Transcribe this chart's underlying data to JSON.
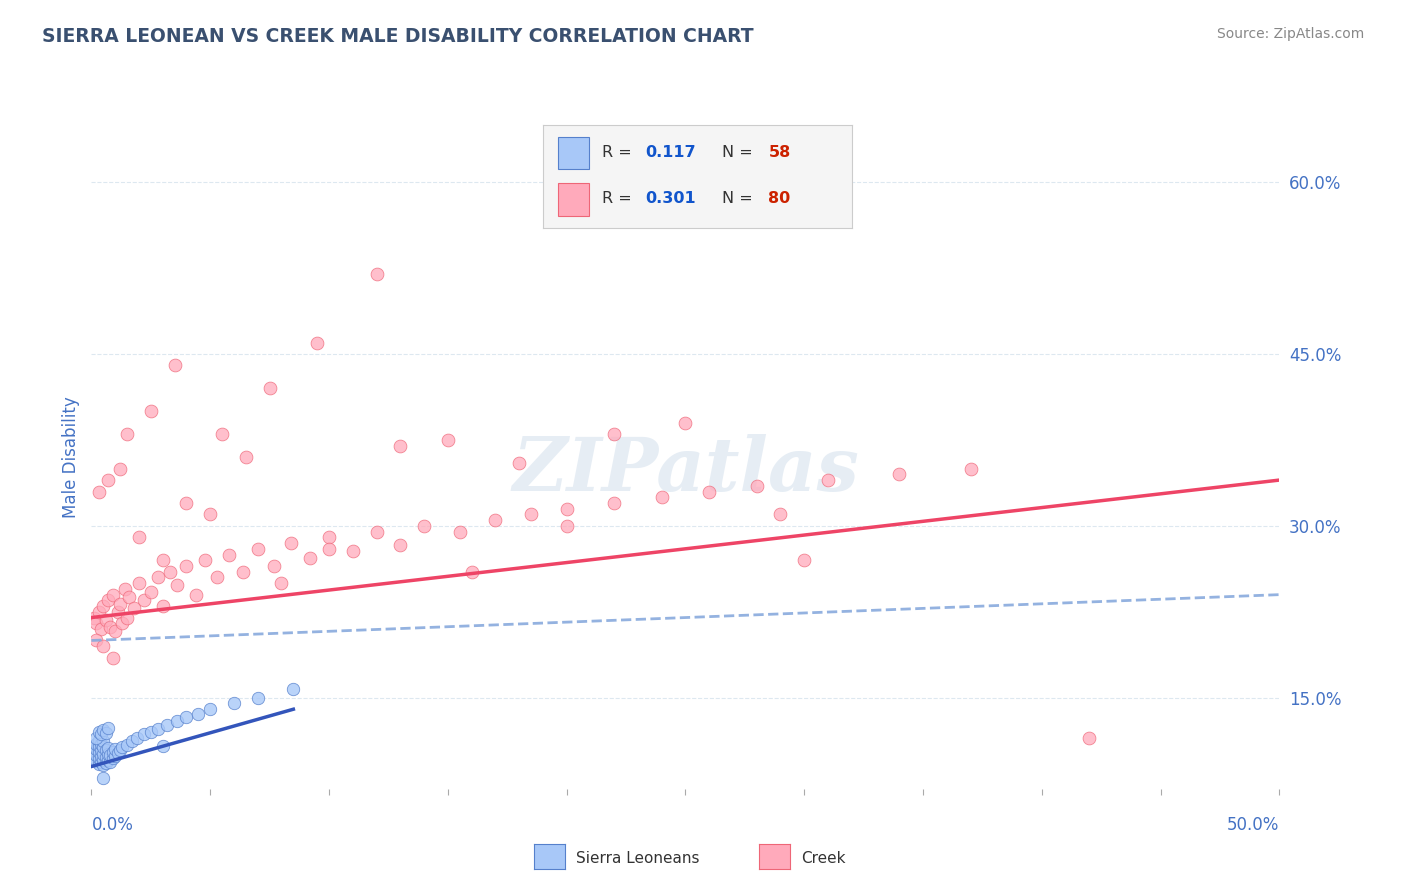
{
  "title": "SIERRA LEONEAN VS CREEK MALE DISABILITY CORRELATION CHART",
  "source_text": "Source: ZipAtlas.com",
  "ylabel": "Male Disability",
  "ylabel_right_ticks": [
    "15.0%",
    "30.0%",
    "45.0%",
    "60.0%"
  ],
  "ylabel_right_vals": [
    0.15,
    0.3,
    0.45,
    0.6
  ],
  "xmin": 0.0,
  "xmax": 0.5,
  "ymin": 0.07,
  "ymax": 0.65,
  "watermark": "ZIPatlas",
  "watermark_color": "#c8d8e8",
  "title_color": "#3a5070",
  "source_color": "#888888",
  "axis_label_color": "#4472c4",
  "background_color": "#ffffff",
  "plot_bg_color": "#ffffff",
  "grid_color": "#dde8f0",
  "sierra_fill": "#a8c8f8",
  "sierra_edge": "#5580cc",
  "creek_fill": "#ffaabb",
  "creek_edge": "#ee6677",
  "trend_sierra_color": "#3355bb",
  "trend_creek_color": "#ee4466",
  "trend_dashed_color": "#88aadd",
  "legend_box_color": "#f5f5f5",
  "legend_border_color": "#cccccc",
  "legend_text_color": "#333333",
  "legend_R_color": "#1155cc",
  "legend_N_color": "#cc2200",
  "bottom_legend_text_color": "#333333",
  "sierra_x": [
    0.001,
    0.001,
    0.001,
    0.002,
    0.002,
    0.002,
    0.002,
    0.003,
    0.003,
    0.003,
    0.003,
    0.003,
    0.004,
    0.004,
    0.004,
    0.004,
    0.005,
    0.005,
    0.005,
    0.005,
    0.005,
    0.006,
    0.006,
    0.006,
    0.007,
    0.007,
    0.007,
    0.008,
    0.008,
    0.009,
    0.009,
    0.01,
    0.01,
    0.011,
    0.012,
    0.013,
    0.015,
    0.017,
    0.019,
    0.022,
    0.025,
    0.028,
    0.032,
    0.036,
    0.04,
    0.045,
    0.05,
    0.06,
    0.07,
    0.085,
    0.002,
    0.003,
    0.004,
    0.005,
    0.006,
    0.007,
    0.03,
    0.005
  ],
  "sierra_y": [
    0.097,
    0.102,
    0.108,
    0.095,
    0.1,
    0.105,
    0.11,
    0.092,
    0.097,
    0.103,
    0.108,
    0.113,
    0.094,
    0.099,
    0.104,
    0.11,
    0.091,
    0.096,
    0.101,
    0.107,
    0.112,
    0.093,
    0.098,
    0.104,
    0.096,
    0.101,
    0.106,
    0.094,
    0.1,
    0.097,
    0.103,
    0.099,
    0.105,
    0.102,
    0.104,
    0.107,
    0.109,
    0.112,
    0.115,
    0.118,
    0.12,
    0.123,
    0.126,
    0.13,
    0.133,
    0.136,
    0.14,
    0.145,
    0.15,
    0.158,
    0.115,
    0.12,
    0.118,
    0.122,
    0.119,
    0.124,
    0.108,
    0.08
  ],
  "creek_x": [
    0.001,
    0.002,
    0.003,
    0.004,
    0.005,
    0.006,
    0.007,
    0.008,
    0.009,
    0.01,
    0.011,
    0.012,
    0.013,
    0.014,
    0.015,
    0.016,
    0.018,
    0.02,
    0.022,
    0.025,
    0.028,
    0.03,
    0.033,
    0.036,
    0.04,
    0.044,
    0.048,
    0.053,
    0.058,
    0.064,
    0.07,
    0.077,
    0.084,
    0.092,
    0.1,
    0.11,
    0.12,
    0.13,
    0.14,
    0.155,
    0.17,
    0.185,
    0.2,
    0.22,
    0.24,
    0.26,
    0.28,
    0.31,
    0.34,
    0.37,
    0.002,
    0.003,
    0.005,
    0.007,
    0.009,
    0.012,
    0.015,
    0.02,
    0.025,
    0.03,
    0.04,
    0.05,
    0.065,
    0.08,
    0.1,
    0.13,
    0.16,
    0.2,
    0.25,
    0.3,
    0.035,
    0.055,
    0.075,
    0.095,
    0.12,
    0.15,
    0.18,
    0.22,
    0.42,
    0.29
  ],
  "creek_y": [
    0.22,
    0.215,
    0.225,
    0.21,
    0.23,
    0.218,
    0.235,
    0.212,
    0.24,
    0.208,
    0.225,
    0.232,
    0.215,
    0.245,
    0.22,
    0.238,
    0.228,
    0.25,
    0.235,
    0.242,
    0.255,
    0.23,
    0.26,
    0.248,
    0.265,
    0.24,
    0.27,
    0.255,
    0.275,
    0.26,
    0.28,
    0.265,
    0.285,
    0.272,
    0.29,
    0.278,
    0.295,
    0.283,
    0.3,
    0.295,
    0.305,
    0.31,
    0.315,
    0.32,
    0.325,
    0.33,
    0.335,
    0.34,
    0.345,
    0.35,
    0.2,
    0.33,
    0.195,
    0.34,
    0.185,
    0.35,
    0.38,
    0.29,
    0.4,
    0.27,
    0.32,
    0.31,
    0.36,
    0.25,
    0.28,
    0.37,
    0.26,
    0.3,
    0.39,
    0.27,
    0.44,
    0.38,
    0.42,
    0.46,
    0.52,
    0.375,
    0.355,
    0.38,
    0.115,
    0.31
  ],
  "sierra_trend_x0": 0.0,
  "sierra_trend_x1": 0.085,
  "sierra_trend_y0": 0.09,
  "sierra_trend_y1": 0.14,
  "creek_trend_y0": 0.22,
  "creek_trend_y1": 0.34,
  "dashed_trend_y0": 0.2,
  "dashed_trend_y1": 0.24
}
